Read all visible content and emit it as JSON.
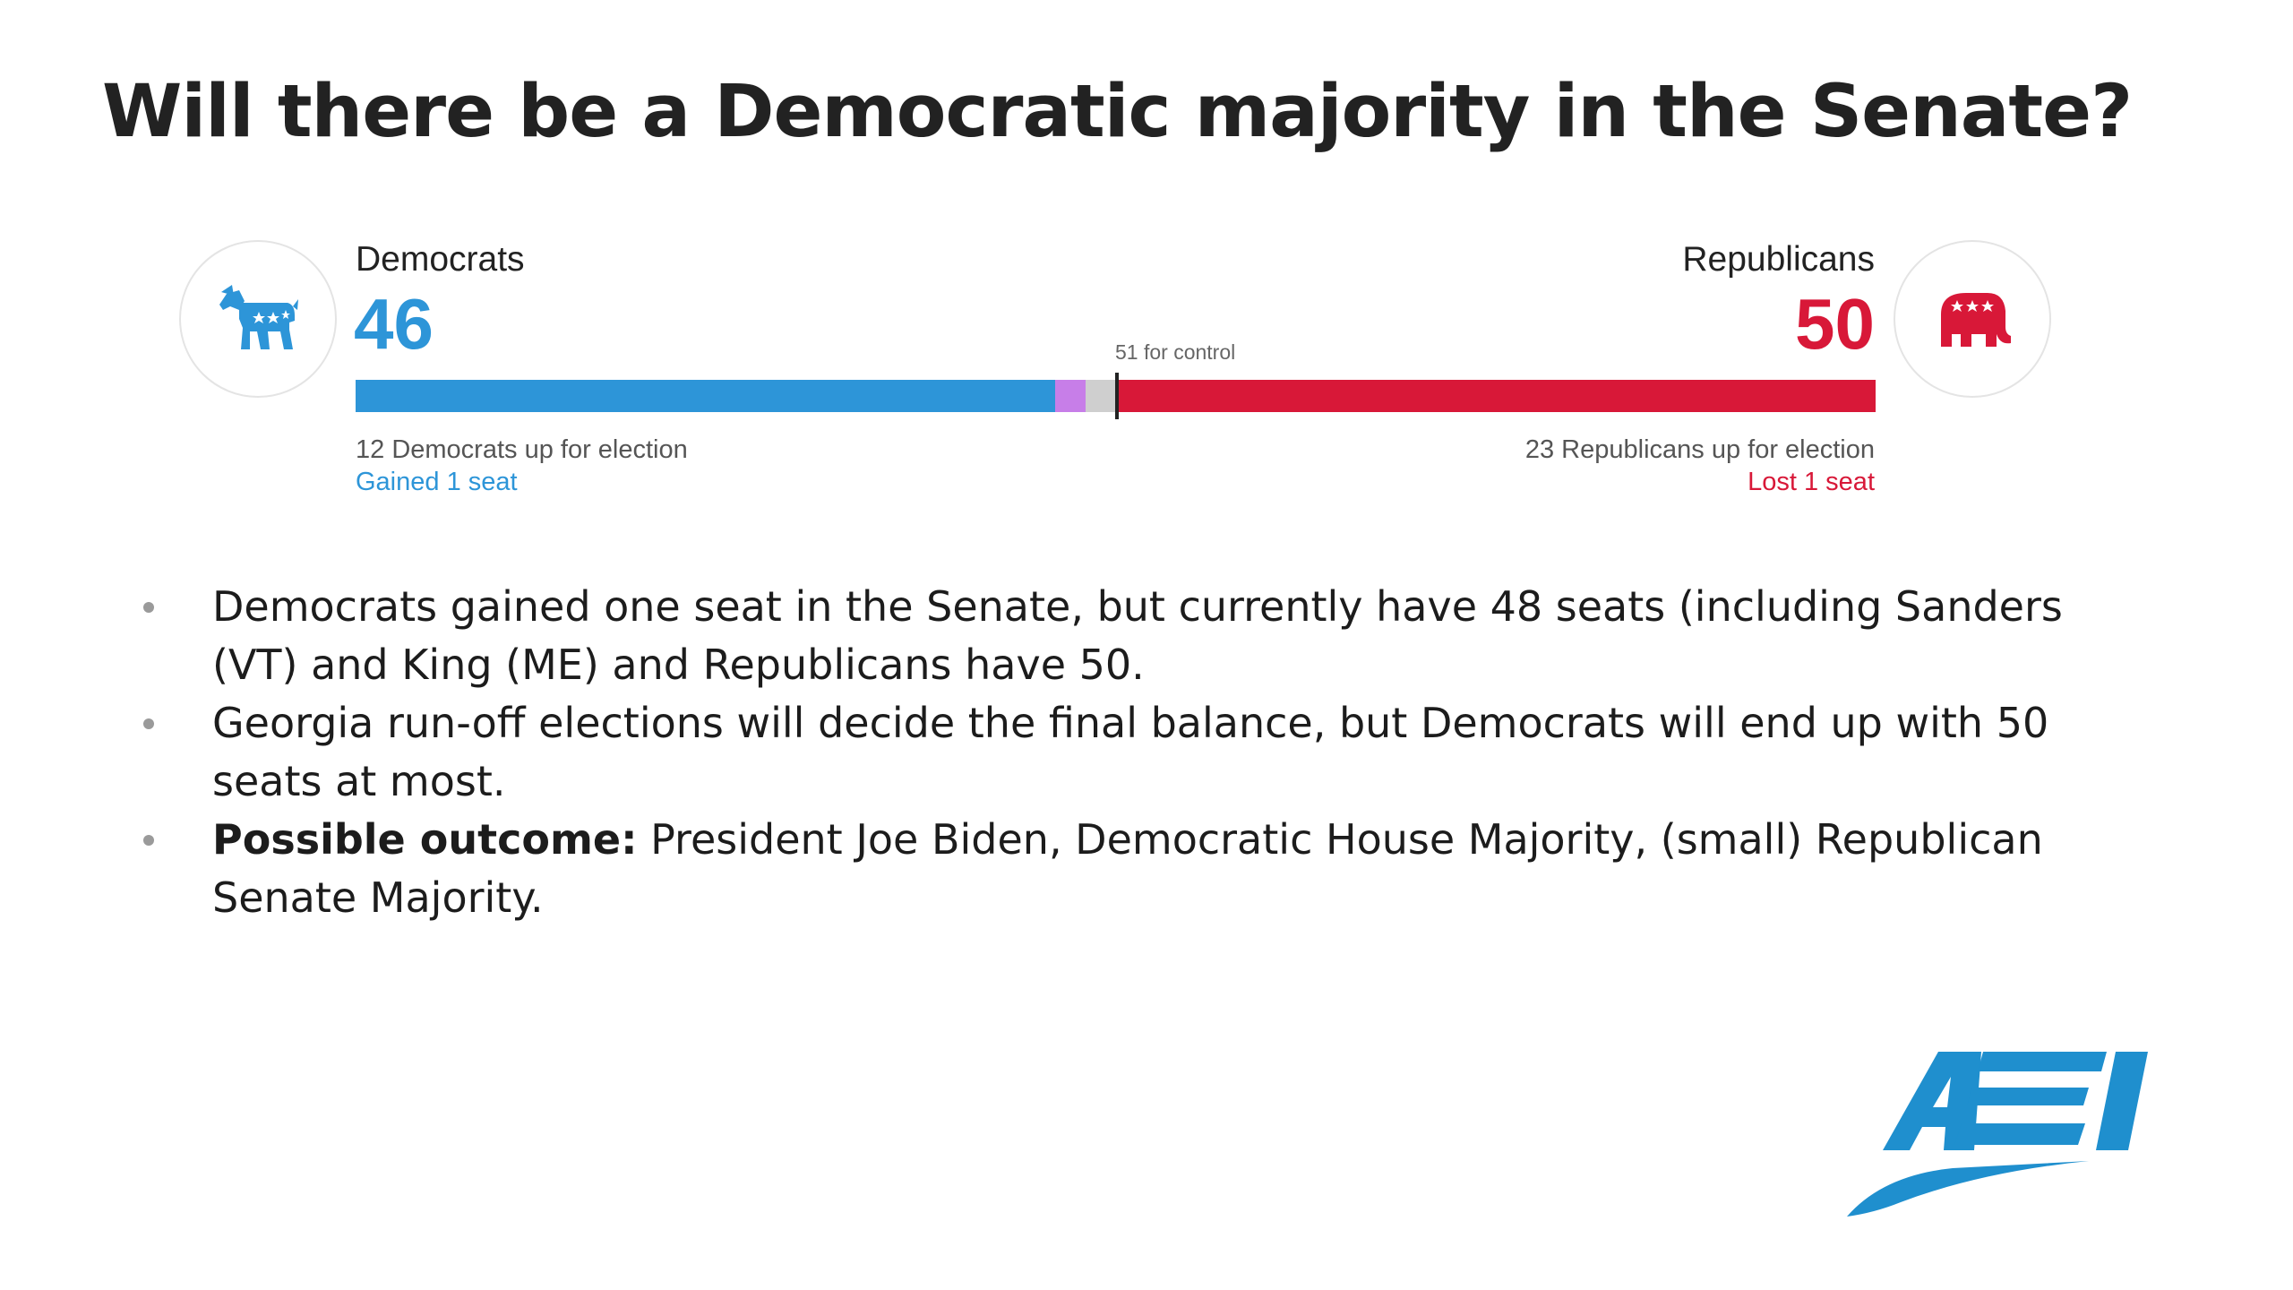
{
  "title": "Will there be a Democratic majority in the Senate?",
  "tracker": {
    "democrats": {
      "name": "Democrats",
      "seats": "46",
      "up_for_election": "12 Democrats up for election",
      "change": "Gained 1 seat",
      "icon": "donkey-icon",
      "color": "#2d95d8"
    },
    "republicans": {
      "name": "Republicans",
      "seats": "50",
      "up_for_election": "23 Republicans up for election",
      "change": "Lost 1 seat",
      "icon": "elephant-icon",
      "color": "#d81838"
    },
    "control_label": "51 for control",
    "bar": {
      "total": 100,
      "segments": [
        {
          "party": "dem",
          "seats": 46,
          "color": "#2d95d8"
        },
        {
          "party": "ind",
          "seats": 2,
          "color": "#c77ee8"
        },
        {
          "party": "und",
          "seats": 2,
          "color": "#cfcfcf"
        },
        {
          "party": "rep",
          "seats": 50,
          "color": "#d81838"
        }
      ]
    }
  },
  "bullets": [
    {
      "bold": "",
      "text": "Democrats gained one seat in the Senate, but currently have 48 seats (including Sanders (VT) and King (ME) and Republicans have 50."
    },
    {
      "bold": "",
      "text": "Georgia run-off elections will decide the final balance, but Democrats will end up with 50 seats at most."
    },
    {
      "bold": "Possible outcome:",
      "text": " President Joe Biden, Democratic House Majority, (small) Republican Senate Majority."
    }
  ],
  "logo": {
    "text": "AEI",
    "color": "#1f8fce"
  }
}
